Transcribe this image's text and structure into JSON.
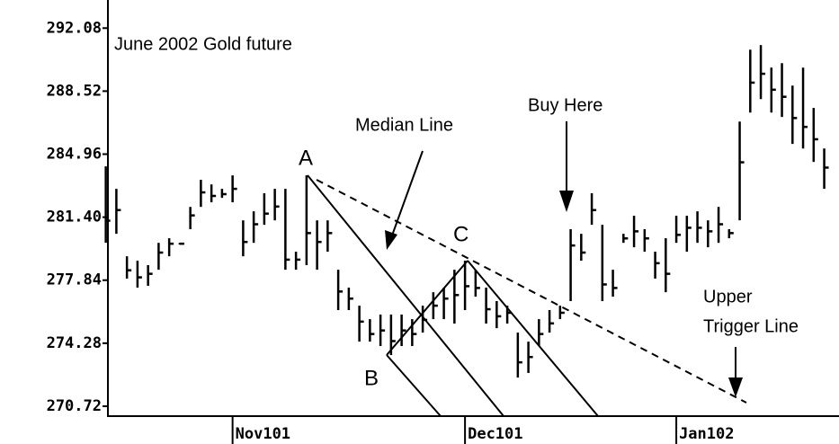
{
  "chart_data": {
    "type": "ohlc",
    "title": "June 2002 Gold future",
    "annotations": [
      "A",
      "B",
      "C",
      "Median Line",
      "Buy Here",
      "Upper",
      "Trigger Line"
    ],
    "color": "#000000",
    "x": [
      0,
      1,
      2,
      3,
      4,
      5,
      6,
      7,
      8,
      9,
      10,
      11,
      12,
      13,
      14,
      15,
      16,
      17,
      18,
      19,
      20,
      21,
      22,
      23,
      24,
      25,
      26,
      27,
      28,
      29,
      30,
      31,
      32,
      33,
      34,
      35,
      36,
      37,
      38,
      39,
      40,
      41,
      42,
      43,
      44,
      45,
      46,
      47,
      48,
      49,
      50,
      51,
      52,
      53,
      54,
      55,
      56,
      57,
      58,
      59,
      60,
      61,
      62,
      63,
      64,
      65,
      66,
      67,
      68
    ],
    "high": [
      284.27,
      283.0,
      279.19,
      278.94,
      278.69,
      279.95,
      280.21,
      279.95,
      281.98,
      283.51,
      283.25,
      283.0,
      283.76,
      281.22,
      281.73,
      282.75,
      283.0,
      283.0,
      279.45,
      283.76,
      281.22,
      281.22,
      278.43,
      277.42,
      276.4,
      275.64,
      275.9,
      275.9,
      275.9,
      275.64,
      276.4,
      277.16,
      277.42,
      278.43,
      278.94,
      278.43,
      277.42,
      276.66,
      276.4,
      274.88,
      274.37,
      275.64,
      276.15,
      276.4,
      280.72,
      280.46,
      282.75,
      280.97,
      278.43,
      280.46,
      281.48,
      280.72,
      279.45,
      280.21,
      281.48,
      281.48,
      281.73,
      281.22,
      281.98,
      280.72,
      286.8,
      290.86,
      291.12,
      289.85,
      290.1,
      288.83,
      289.85,
      287.57,
      285.28
    ],
    "low": [
      279.95,
      280.46,
      277.93,
      277.42,
      277.52,
      278.43,
      279.19,
      279.85,
      280.72,
      281.98,
      282.24,
      282.49,
      282.24,
      279.19,
      279.95,
      280.97,
      281.22,
      278.43,
      278.43,
      278.69,
      278.43,
      279.45,
      276.15,
      276.15,
      274.37,
      274.37,
      274.12,
      273.61,
      274.12,
      274.12,
      274.88,
      275.64,
      275.64,
      275.39,
      276.15,
      276.91,
      275.39,
      275.13,
      275.39,
      272.34,
      272.6,
      274.12,
      274.88,
      275.64,
      276.66,
      278.94,
      280.97,
      276.66,
      276.91,
      279.95,
      279.7,
      279.45,
      277.93,
      277.16,
      279.95,
      279.45,
      279.95,
      279.7,
      279.95,
      280.21,
      281.22,
      287.31,
      288.07,
      287.31,
      287.06,
      285.54,
      285.28,
      284.52,
      283.0
    ],
    "close": [
      281.2,
      281.8,
      278.4,
      278.0,
      278.2,
      279.4,
      279.9,
      279.9,
      281.5,
      282.8,
      282.6,
      282.7,
      283.0,
      280.0,
      281.0,
      281.6,
      282.0,
      279.0,
      279.0,
      280.5,
      280.0,
      280.5,
      277.2,
      276.8,
      275.5,
      274.8,
      275.0,
      274.4,
      275.0,
      274.8,
      275.6,
      276.4,
      276.8,
      277.0,
      277.5,
      277.4,
      276.2,
      275.8,
      276.0,
      273.2,
      273.5,
      274.8,
      275.4,
      276.0,
      279.8,
      279.4,
      281.8,
      277.6,
      277.4,
      280.2,
      280.6,
      280.2,
      278.8,
      278.2,
      280.4,
      280.8,
      280.8,
      280.6,
      281.0,
      280.5,
      284.5,
      289.0,
      289.5,
      288.6,
      288.2,
      287.0,
      286.5,
      285.8,
      284.2
    ],
    "xlim": [
      0.2,
      69.4
    ],
    "xticks": [
      {
        "value": 12,
        "label": "Nov101"
      },
      {
        "value": 34,
        "label": "Dec101"
      },
      {
        "value": 54,
        "label": "Jan102"
      }
    ],
    "ylim": [
      270.16,
      292.5
    ],
    "yticks": [
      270.72,
      274.28,
      277.84,
      {
        "value": 281.4,
        "label": "281.40"
      },
      284.96,
      288.52,
      292.08
    ]
  }
}
